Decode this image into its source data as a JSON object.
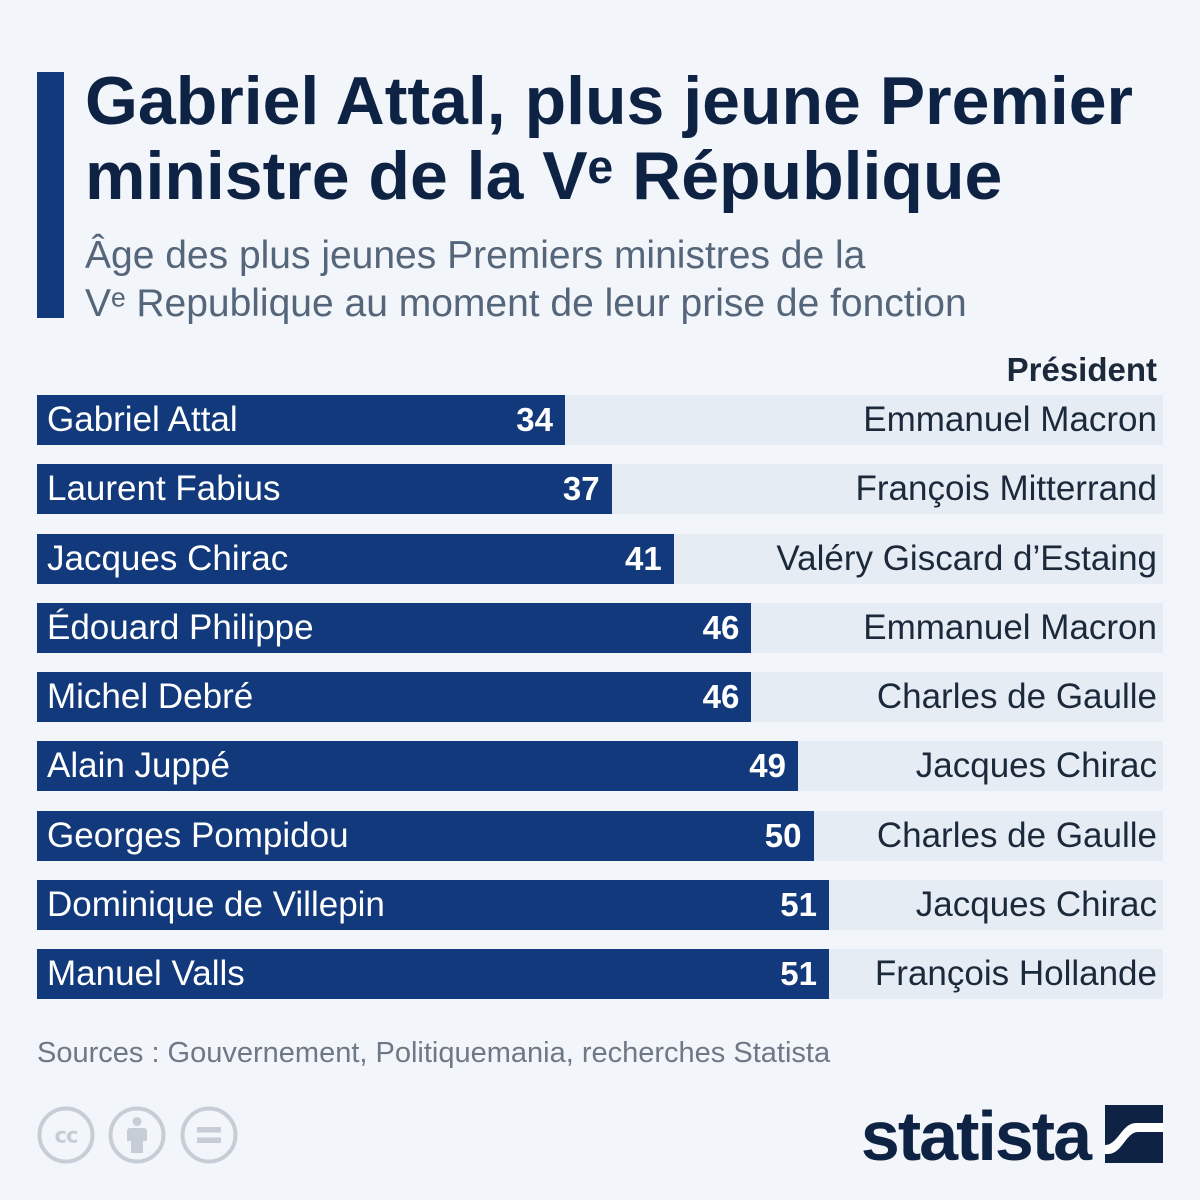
{
  "colors": {
    "background": "#f2f5f9",
    "accent_bar": "#11397b",
    "bar": "#11397b",
    "row_band": "#e6ecf4",
    "title": "#0e2243",
    "subtitle": "#55667a",
    "text": "#1b293b",
    "source": "#6f7886",
    "license_icon": "#c6cdd6",
    "logo": "#0e2243"
  },
  "chart_data": {
    "type": "bar",
    "horizontal": true,
    "title": "Gabriel Attal, plus jeune Premier\nministre de la Vᵉ République",
    "subtitle": "Âge des plus jeunes Premiers ministres de la\nVᵉ Republique au moment de leur prise de fonction",
    "categories": [
      "Gabriel Attal",
      "Laurent Fabius",
      "Jacques Chirac",
      "Édouard Philippe",
      "Michel Debré",
      "Alain Juppé",
      "Georges Pompidou",
      "Dominique de Villepin",
      "Manuel Valls"
    ],
    "values": [
      34,
      37,
      41,
      46,
      46,
      49,
      50,
      51,
      51
    ],
    "president_header": "Président",
    "presidents": [
      "Emmanuel Macron",
      "François Mitterrand",
      "Valéry Giscard d’Estaing",
      "Emmanuel Macron",
      "Charles de Gaulle",
      "Jacques Chirac",
      "Charles de Gaulle",
      "Jacques Chirac",
      "François Hollande"
    ],
    "data_labels": true,
    "grid": false,
    "axes_visible": false,
    "legend_visible": false
  },
  "source": "Sources : Gouvernement, Politiquemania, recherches Statista",
  "footer": {
    "license_icons": [
      {
        "icon": "creative-commons-icon",
        "text": "cc"
      },
      {
        "icon": "attribution-icon"
      },
      {
        "icon": "no-derivatives-icon"
      }
    ],
    "logo_text": "statista",
    "logo_icon": "statista-logo-icon"
  }
}
